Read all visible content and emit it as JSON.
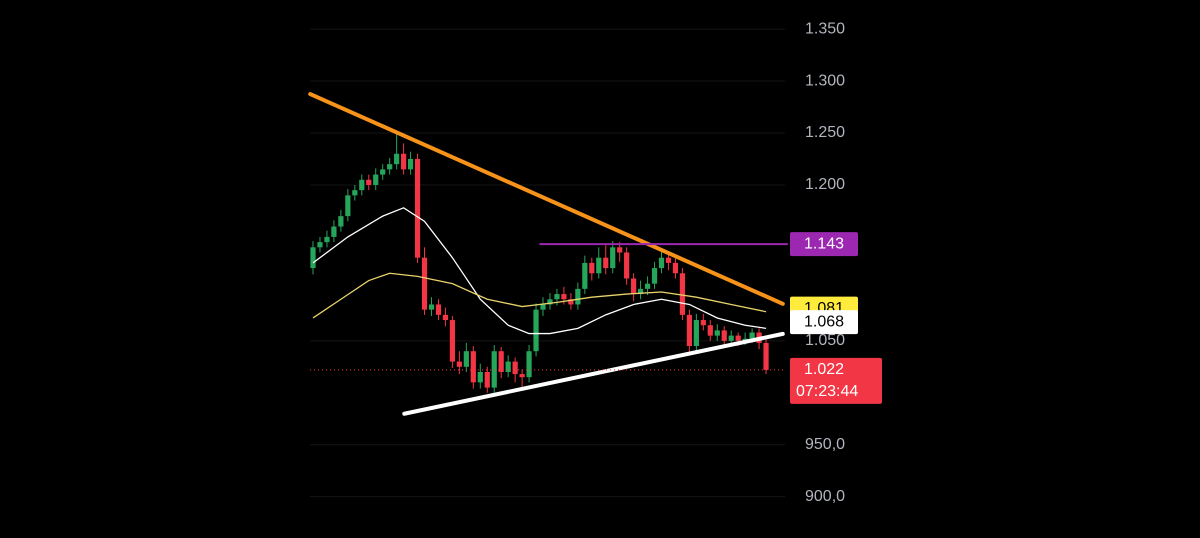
{
  "chart_data": {
    "type": "candlestick",
    "opens": [
      1120,
      1140,
      1145,
      1150,
      1160,
      1170,
      1190,
      1195,
      1205,
      1200,
      1210,
      1215,
      1220,
      1230,
      1215,
      1225,
      1130,
      1080,
      1085,
      1075,
      1070,
      1030,
      1025,
      1040,
      1010,
      1020,
      1005,
      1040,
      1020,
      1030,
      1018,
      1015,
      1040,
      1080,
      1085,
      1090,
      1095,
      1090,
      1085,
      1100,
      1125,
      1115,
      1130,
      1120,
      1140,
      1135,
      1110,
      1095,
      1100,
      1105,
      1120,
      1130,
      1125,
      1115,
      1075,
      1045,
      1070,
      1065,
      1055,
      1060,
      1050,
      1055,
      1050,
      1052,
      1058,
      1048
    ],
    "highs": [
      1146,
      1150,
      1156,
      1166,
      1176,
      1196,
      1200,
      1210,
      1210,
      1216,
      1220,
      1226,
      1250,
      1240,
      1232,
      1230,
      1140,
      1092,
      1090,
      1082,
      1074,
      1040,
      1048,
      1045,
      1028,
      1025,
      1046,
      1044,
      1036,
      1034,
      1022,
      1046,
      1086,
      1092,
      1096,
      1100,
      1102,
      1096,
      1106,
      1132,
      1130,
      1140,
      1142,
      1146,
      1145,
      1140,
      1115,
      1108,
      1112,
      1126,
      1136,
      1134,
      1130,
      1120,
      1080,
      1076,
      1076,
      1070,
      1066,
      1064,
      1060,
      1058,
      1058,
      1062,
      1062,
      1052
    ],
    "lows": [
      1114,
      1135,
      1140,
      1145,
      1155,
      1165,
      1185,
      1190,
      1195,
      1195,
      1205,
      1210,
      1215,
      1210,
      1210,
      1125,
      1075,
      1074,
      1070,
      1064,
      1024,
      1018,
      1020,
      1004,
      1004,
      1000,
      1000,
      1014,
      1015,
      1010,
      1005,
      1010,
      1035,
      1074,
      1080,
      1084,
      1085,
      1080,
      1080,
      1095,
      1108,
      1110,
      1114,
      1115,
      1126,
      1104,
      1088,
      1090,
      1094,
      1100,
      1115,
      1118,
      1110,
      1070,
      1038,
      1040,
      1060,
      1050,
      1050,
      1045,
      1046,
      1045,
      1046,
      1048,
      1042,
      1018
    ],
    "closes": [
      1140,
      1145,
      1150,
      1160,
      1170,
      1190,
      1195,
      1205,
      1200,
      1210,
      1215,
      1220,
      1230,
      1215,
      1225,
      1130,
      1080,
      1085,
      1075,
      1070,
      1030,
      1025,
      1040,
      1010,
      1020,
      1005,
      1040,
      1020,
      1030,
      1018,
      1015,
      1040,
      1080,
      1085,
      1090,
      1095,
      1090,
      1085,
      1100,
      1125,
      1115,
      1130,
      1120,
      1140,
      1135,
      1110,
      1095,
      1100,
      1105,
      1120,
      1130,
      1125,
      1115,
      1075,
      1045,
      1070,
      1065,
      1055,
      1060,
      1050,
      1055,
      1050,
      1052,
      1058,
      1048,
      1022
    ],
    "up_color": "#26a65b",
    "down_color": "#f23645",
    "xlim": [
      -0.5,
      68
    ],
    "ylim": [
      892,
      1378
    ],
    "yticks": [
      {
        "value": 1350,
        "label": "1.350"
      },
      {
        "value": 1300,
        "label": "1.300"
      },
      {
        "value": 1250,
        "label": "1.250"
      },
      {
        "value": 1200,
        "label": "1.200"
      },
      {
        "value": 1050,
        "label": "1.050"
      },
      {
        "value": 950,
        "label": "950,0"
      },
      {
        "value": 900,
        "label": "900,0"
      }
    ],
    "grid": true,
    "series": [
      {
        "color": "#ffffff",
        "x": [
          0,
          5,
          10,
          13,
          16,
          20,
          24,
          28,
          31,
          34,
          38,
          42,
          46,
          50,
          54,
          58,
          62,
          65
        ],
        "values": [
          1125,
          1150,
          1170,
          1178,
          1165,
          1130,
          1090,
          1065,
          1057,
          1057,
          1062,
          1075,
          1085,
          1090,
          1085,
          1072,
          1065,
          1062
        ]
      },
      {
        "color": "#e8d36a",
        "x": [
          0,
          4,
          8,
          11,
          15,
          20,
          25,
          30,
          35,
          40,
          45,
          50,
          55,
          60,
          65
        ],
        "values": [
          1072,
          1090,
          1108,
          1115,
          1112,
          1105,
          1090,
          1083,
          1087,
          1092,
          1095,
          1097,
          1092,
          1085,
          1078
        ]
      }
    ],
    "trendlines": [
      {
        "color": "#f7931a",
        "x": [
          -0.4,
          67.4
        ],
        "values": [
          1287.5,
          1085.6
        ]
      },
      {
        "color": "#ffffff",
        "x": [
          13.1,
          67.4
        ],
        "values": [
          979.8,
          1056.7
        ]
      },
      {
        "color": "#9c27b0",
        "x": [
          32.6,
          68
        ],
        "values": [
          1143,
          1143
        ]
      }
    ],
    "price_tags": [
      {
        "value": 1143,
        "label": "1.143",
        "color": "#9c27b0",
        "text_color": "#ffffff"
      },
      {
        "value": 1081,
        "label": "1.081",
        "color": "#ffeb3b",
        "text_color": "#000000"
      },
      {
        "value": 1068,
        "label": "1.068",
        "color": "#ffffff",
        "text_color": "#000000"
      },
      {
        "value": 1022,
        "label": "1.022",
        "color": "#f23645",
        "text_color": "#ffffff",
        "countdown": "07:23:44"
      }
    ]
  }
}
